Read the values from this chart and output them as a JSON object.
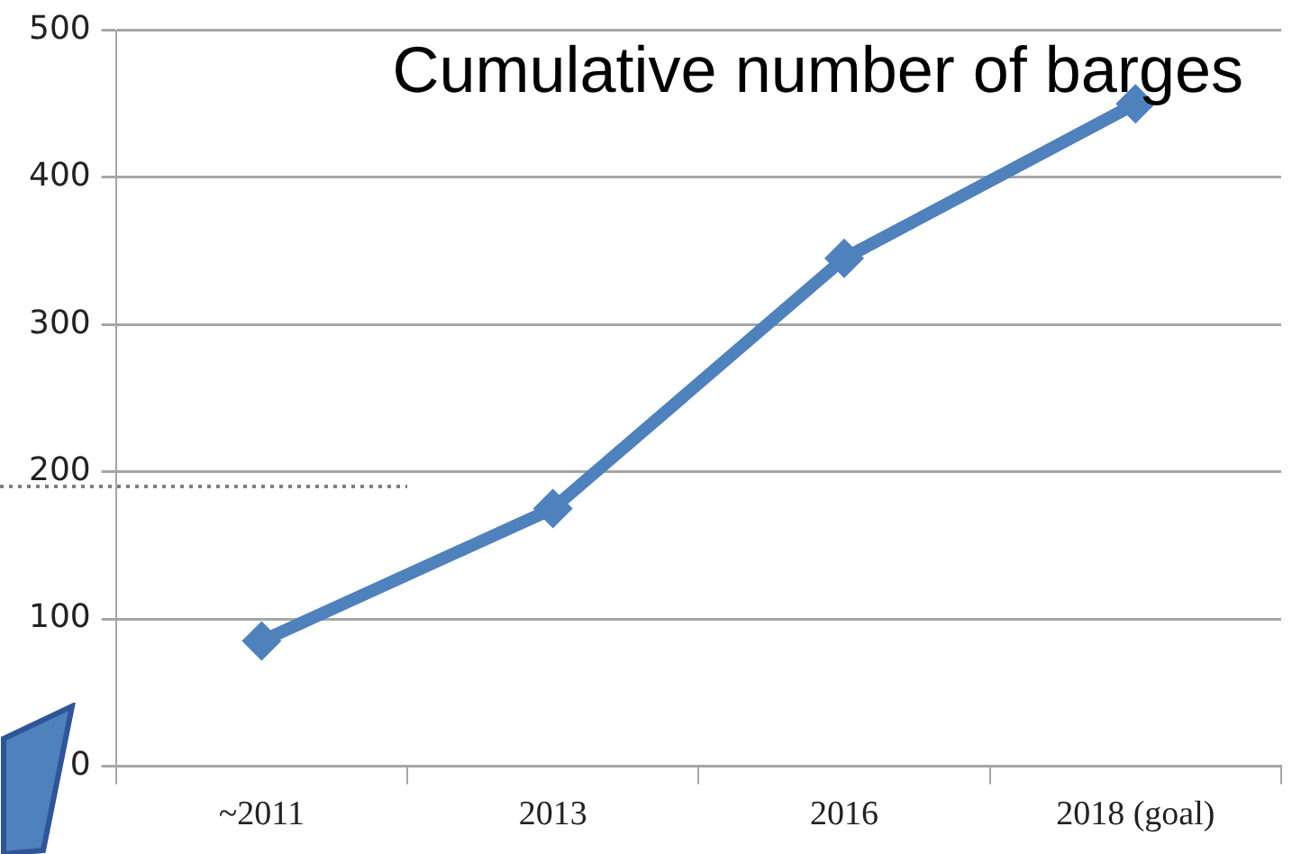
{
  "chart_data": {
    "type": "line",
    "title": "Cumulative number of barges",
    "categories": [
      "~2011",
      "2013",
      "2016",
      "2018 (goal)"
    ],
    "series": [
      {
        "color": "#4f81bd",
        "values": [
          85,
          175,
          345,
          450
        ]
      }
    ],
    "ylim": [
      0,
      500
    ],
    "yticks": [
      0,
      100,
      200,
      300,
      400,
      500
    ],
    "grid": "y",
    "legend": false,
    "marker": "diamond",
    "line_style": "solid",
    "ref_lines": [
      {
        "axis": "y",
        "value": 190,
        "color": "#7f7f7f",
        "line_style": "dotted"
      }
    ]
  }
}
